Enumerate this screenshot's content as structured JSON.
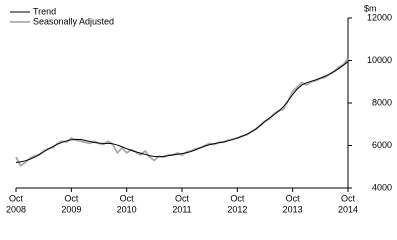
{
  "chart_data": {
    "type": "line",
    "x": [
      "2008-10",
      "2008-11",
      "2008-12",
      "2009-01",
      "2009-02",
      "2009-03",
      "2009-04",
      "2009-05",
      "2009-06",
      "2009-07",
      "2009-08",
      "2009-09",
      "2009-10",
      "2009-11",
      "2009-12",
      "2010-01",
      "2010-02",
      "2010-03",
      "2010-04",
      "2010-05",
      "2010-06",
      "2010-07",
      "2010-08",
      "2010-09",
      "2010-10",
      "2010-11",
      "2010-12",
      "2011-01",
      "2011-02",
      "2011-03",
      "2011-04",
      "2011-05",
      "2011-06",
      "2011-07",
      "2011-08",
      "2011-09",
      "2011-10",
      "2011-11",
      "2011-12",
      "2012-01",
      "2012-02",
      "2012-03",
      "2012-04",
      "2012-05",
      "2012-06",
      "2012-07",
      "2012-08",
      "2012-09",
      "2012-10",
      "2012-11",
      "2012-12",
      "2013-01",
      "2013-02",
      "2013-03",
      "2013-04",
      "2013-05",
      "2013-06",
      "2013-07",
      "2013-08",
      "2013-09",
      "2013-10",
      "2013-11",
      "2013-12",
      "2014-01",
      "2014-02",
      "2014-03",
      "2014-04",
      "2014-05",
      "2014-06",
      "2014-07",
      "2014-08",
      "2014-09",
      "2014-10"
    ],
    "series": [
      {
        "name": "Trend",
        "color": "#000000",
        "values": [
          5200,
          5230,
          5280,
          5350,
          5450,
          5570,
          5700,
          5830,
          5950,
          6060,
          6150,
          6220,
          6270,
          6290,
          6280,
          6240,
          6190,
          6140,
          6110,
          6100,
          6100,
          6080,
          6020,
          5940,
          5850,
          5770,
          5700,
          5640,
          5580,
          5520,
          5480,
          5470,
          5490,
          5520,
          5560,
          5590,
          5620,
          5660,
          5720,
          5800,
          5890,
          5970,
          6040,
          6090,
          6130,
          6170,
          6220,
          6280,
          6350,
          6430,
          6520,
          6640,
          6780,
          6950,
          7130,
          7300,
          7460,
          7620,
          7830,
          8100,
          8400,
          8660,
          8850,
          8950,
          9020,
          9090,
          9170,
          9260,
          9360,
          9480,
          9620,
          9780,
          9950
        ]
      },
      {
        "name": "Seasonally Adjusted",
        "color": "#aaaaaa",
        "values": [
          5450,
          5050,
          5200,
          5400,
          5500,
          5550,
          5750,
          5850,
          5900,
          6100,
          6200,
          6150,
          6350,
          6250,
          6200,
          6150,
          6100,
          6200,
          6100,
          6050,
          6200,
          6050,
          5650,
          5900,
          5650,
          5800,
          5700,
          5550,
          5750,
          5450,
          5300,
          5500,
          5450,
          5550,
          5550,
          5650,
          5550,
          5700,
          5750,
          5850,
          5900,
          6000,
          6100,
          6050,
          6150,
          6150,
          6250,
          6300,
          6350,
          6450,
          6500,
          6650,
          6750,
          6950,
          7150,
          7250,
          7500,
          7650,
          7700,
          8100,
          8550,
          8750,
          8950,
          8850,
          9000,
          9050,
          9150,
          9200,
          9350,
          9500,
          9700,
          9800,
          10100
        ]
      }
    ],
    "y_unit": "$m",
    "ylim": [
      4000,
      12000
    ],
    "yticks": [
      4000,
      6000,
      8000,
      10000,
      12000
    ],
    "xticks": [
      {
        "value": "2008-10",
        "label": [
          "Oct",
          "2008"
        ]
      },
      {
        "value": "2009-10",
        "label": [
          "Oct",
          "2009"
        ]
      },
      {
        "value": "2010-10",
        "label": [
          "Oct",
          "2010"
        ]
      },
      {
        "value": "2011-10",
        "label": [
          "Oct",
          "2011"
        ]
      },
      {
        "value": "2012-10",
        "label": [
          "Oct",
          "2012"
        ]
      },
      {
        "value": "2013-10",
        "label": [
          "Oct",
          "2013"
        ]
      },
      {
        "value": "2014-10",
        "label": [
          "Oct",
          "2014"
        ]
      }
    ],
    "grid": false
  }
}
